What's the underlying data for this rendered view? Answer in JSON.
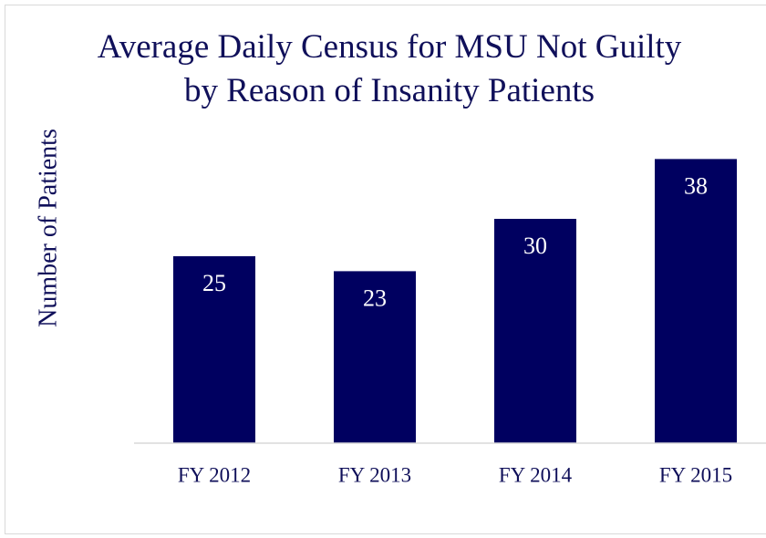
{
  "chart_data": {
    "type": "bar",
    "title": "Average Daily Census for MSU Not Guilty by Reason of Insanity Patients",
    "y_label": "Number of Patients",
    "categories": [
      "FY 2012",
      "FY 2013",
      "FY 2014",
      "FY 2015"
    ],
    "values": [
      25,
      23,
      30,
      38
    ],
    "color": "#000060",
    "ylim": [
      0,
      40
    ]
  }
}
